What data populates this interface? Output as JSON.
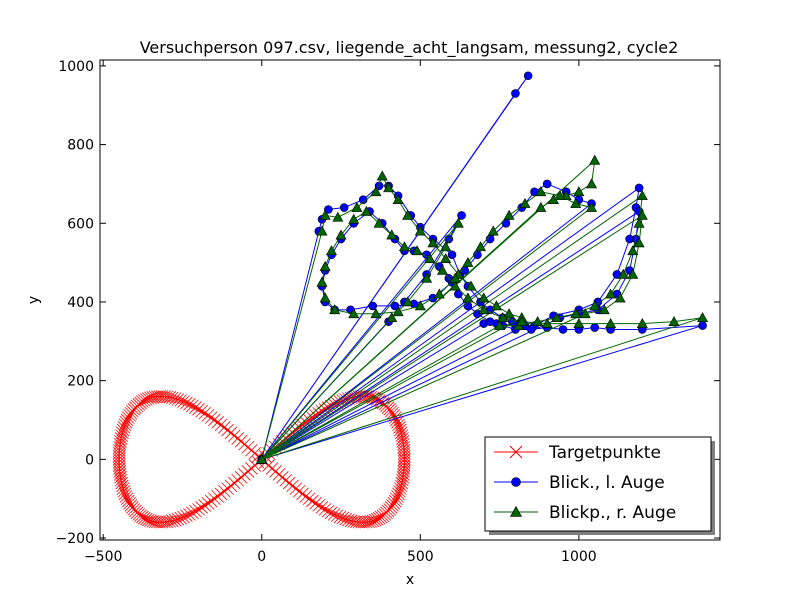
{
  "chart_data": {
    "type": "line",
    "title": "Versuchperson 097.csv, liegende_acht_langsam, messung2, cycle2",
    "xlabel": "x",
    "ylabel": "y",
    "xlim": [
      -510,
      1445
    ],
    "ylim": [
      -205,
      1015
    ],
    "xticks": [
      -500,
      0,
      500,
      1000
    ],
    "xtick_labels": [
      "−500",
      "0",
      "500",
      "1000"
    ],
    "yticks": [
      -200,
      0,
      200,
      400,
      600,
      800,
      1000
    ],
    "ytick_labels": [
      "−200",
      "0",
      "200",
      "400",
      "600",
      "800",
      "1000"
    ],
    "grid": false,
    "legend_position": "bottom-right",
    "target": {
      "name": "Targetpunkte",
      "color": "#ff0000",
      "marker": "x",
      "shape": "lemniscate",
      "center": [
        0,
        0
      ],
      "half_width": 450,
      "half_height": 160
    },
    "series": [
      {
        "name": "Blick., l. Auge",
        "color": "#0000ff",
        "marker": "circle",
        "points": [
          [
            0,
            0
          ],
          [
            840,
            975
          ],
          [
            800,
            930
          ],
          [
            0,
            0
          ],
          [
            180,
            580
          ],
          [
            190,
            610
          ],
          [
            210,
            635
          ],
          [
            260,
            640
          ],
          [
            320,
            660
          ],
          [
            370,
            695
          ],
          [
            400,
            695
          ],
          [
            430,
            670
          ],
          [
            470,
            620
          ],
          [
            500,
            590
          ],
          [
            540,
            560
          ],
          [
            600,
            520
          ],
          [
            625,
            470
          ],
          [
            650,
            440
          ],
          [
            690,
            400
          ],
          [
            720,
            380
          ],
          [
            760,
            360
          ],
          [
            790,
            350
          ],
          [
            830,
            340
          ],
          [
            0,
            0
          ],
          [
            1190,
            690
          ],
          [
            1180,
            640
          ],
          [
            1160,
            560
          ],
          [
            1120,
            470
          ],
          [
            1060,
            400
          ],
          [
            1000,
            380
          ],
          [
            920,
            365
          ],
          [
            860,
            340
          ],
          [
            800,
            340
          ],
          [
            740,
            345
          ],
          [
            700,
            345
          ],
          [
            0,
            0
          ],
          [
            1390,
            340
          ],
          [
            1200,
            330
          ],
          [
            1100,
            330
          ],
          [
            1050,
            335
          ],
          [
            1000,
            330
          ],
          [
            950,
            330
          ],
          [
            900,
            335
          ],
          [
            850,
            330
          ],
          [
            800,
            330
          ],
          [
            760,
            340
          ],
          [
            720,
            350
          ],
          [
            680,
            370
          ],
          [
            650,
            390
          ],
          [
            620,
            420
          ],
          [
            590,
            460
          ],
          [
            560,
            490
          ],
          [
            520,
            520
          ],
          [
            480,
            530
          ],
          [
            450,
            530
          ],
          [
            420,
            560
          ],
          [
            380,
            600
          ],
          [
            340,
            630
          ],
          [
            290,
            600
          ],
          [
            250,
            560
          ],
          [
            220,
            520
          ],
          [
            200,
            480
          ],
          [
            190,
            440
          ],
          [
            200,
            400
          ],
          [
            230,
            380
          ],
          [
            280,
            380
          ],
          [
            350,
            390
          ],
          [
            420,
            390
          ],
          [
            480,
            395
          ],
          [
            540,
            410
          ],
          [
            600,
            450
          ],
          [
            640,
            480
          ],
          [
            680,
            520
          ],
          [
            720,
            560
          ],
          [
            770,
            600
          ],
          [
            820,
            640
          ],
          [
            860,
            680
          ],
          [
            900,
            700
          ],
          [
            960,
            680
          ],
          [
            1000,
            660
          ],
          [
            1040,
            650
          ],
          [
            0,
            0
          ],
          [
            1190,
            630
          ],
          [
            1180,
            560
          ],
          [
            1160,
            480
          ],
          [
            1120,
            420
          ],
          [
            1060,
            380
          ],
          [
            1000,
            370
          ],
          [
            940,
            360
          ],
          [
            0,
            0
          ],
          [
            630,
            620
          ],
          [
            590,
            560
          ],
          [
            520,
            470
          ],
          [
            450,
            400
          ],
          [
            400,
            350
          ],
          [
            0,
            0
          ]
        ]
      },
      {
        "name": "Blickp., r. Auge",
        "color": "#006400",
        "marker": "triangle",
        "points": [
          [
            0,
            0
          ],
          [
            190,
            580
          ],
          [
            200,
            620
          ],
          [
            240,
            615
          ],
          [
            300,
            640
          ],
          [
            360,
            680
          ],
          [
            380,
            720
          ],
          [
            400,
            690
          ],
          [
            430,
            660
          ],
          [
            460,
            620
          ],
          [
            500,
            580
          ],
          [
            540,
            550
          ],
          [
            580,
            510
          ],
          [
            620,
            470
          ],
          [
            660,
            440
          ],
          [
            700,
            410
          ],
          [
            740,
            390
          ],
          [
            780,
            370
          ],
          [
            820,
            360
          ],
          [
            0,
            0
          ],
          [
            1050,
            760
          ],
          [
            1040,
            700
          ],
          [
            1000,
            680
          ],
          [
            960,
            670
          ],
          [
            920,
            660
          ],
          [
            880,
            640
          ],
          [
            0,
            0
          ],
          [
            1200,
            670
          ],
          [
            1190,
            600
          ],
          [
            1170,
            530
          ],
          [
            1140,
            470
          ],
          [
            1100,
            420
          ],
          [
            1050,
            390
          ],
          [
            990,
            370
          ],
          [
            930,
            360
          ],
          [
            870,
            350
          ],
          [
            810,
            340
          ],
          [
            750,
            340
          ],
          [
            0,
            0
          ],
          [
            1390,
            360
          ],
          [
            1300,
            350
          ],
          [
            1200,
            345
          ],
          [
            1100,
            345
          ],
          [
            1000,
            345
          ],
          [
            900,
            345
          ],
          [
            820,
            350
          ],
          [
            760,
            360
          ],
          [
            700,
            380
          ],
          [
            650,
            410
          ],
          [
            610,
            440
          ],
          [
            570,
            480
          ],
          [
            530,
            510
          ],
          [
            490,
            530
          ],
          [
            450,
            540
          ],
          [
            410,
            570
          ],
          [
            370,
            600
          ],
          [
            330,
            630
          ],
          [
            290,
            610
          ],
          [
            250,
            570
          ],
          [
            220,
            530
          ],
          [
            200,
            490
          ],
          [
            190,
            450
          ],
          [
            200,
            410
          ],
          [
            230,
            380
          ],
          [
            290,
            370
          ],
          [
            360,
            370
          ],
          [
            430,
            375
          ],
          [
            500,
            390
          ],
          [
            560,
            420
          ],
          [
            610,
            460
          ],
          [
            650,
            500
          ],
          [
            690,
            540
          ],
          [
            730,
            580
          ],
          [
            780,
            620
          ],
          [
            830,
            650
          ],
          [
            880,
            680
          ],
          [
            940,
            670
          ],
          [
            990,
            650
          ],
          [
            1040,
            640
          ],
          [
            0,
            0
          ],
          [
            1200,
            620
          ],
          [
            1190,
            550
          ],
          [
            1170,
            470
          ],
          [
            1130,
            410
          ],
          [
            1080,
            380
          ],
          [
            1020,
            370
          ],
          [
            0,
            0
          ],
          [
            620,
            600
          ],
          [
            580,
            540
          ],
          [
            520,
            460
          ],
          [
            460,
            400
          ],
          [
            410,
            360
          ],
          [
            0,
            0
          ]
        ]
      }
    ]
  }
}
